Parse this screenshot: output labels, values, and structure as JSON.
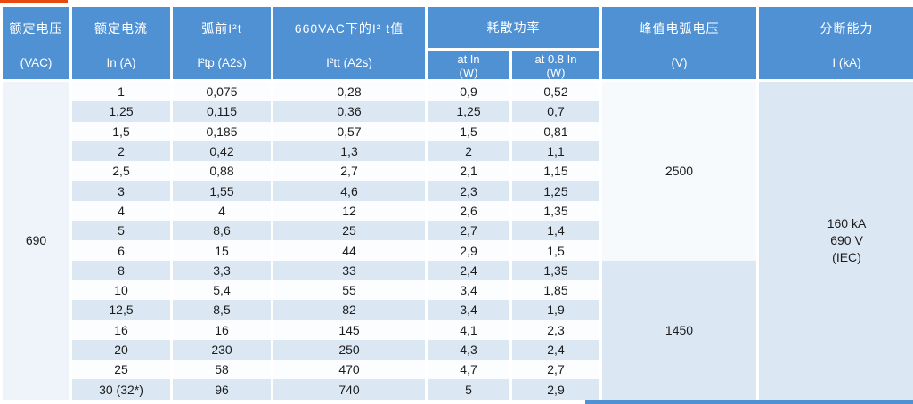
{
  "header": {
    "voltage": {
      "line1": "额定电压",
      "line2": "(VAC)"
    },
    "current": {
      "line1": "额定电流",
      "line2": "In (A)"
    },
    "prearc": {
      "line1": "弧前I²t",
      "line2": "I²tp (A2s)"
    },
    "i2t_660": {
      "line1": "660VAC下的I² t值",
      "line2": "I²tt (A2s)"
    },
    "power": {
      "label": "耗散功率",
      "sub_at_in": {
        "line1": "at In",
        "line2": "(W)"
      },
      "sub_at_08in": {
        "line1": "at 0.8 In",
        "line2": "(W)"
      }
    },
    "peak_arc": {
      "line1": "峰值电弧电压",
      "line2": "(V)"
    },
    "breaking": {
      "line1": "分断能力",
      "line2": "I (kA)"
    }
  },
  "rated_voltage": "690",
  "breaking_capacity": {
    "line1": "160 kA",
    "line2": "690 V",
    "line3": "(IEC)"
  },
  "groups": [
    {
      "peak_arc_voltage": "2500",
      "rows": [
        {
          "in": "1",
          "i2tp": "0,075",
          "i2tt": "0,28",
          "p_in": "0,9",
          "p_08in": "0,52"
        },
        {
          "in": "1,25",
          "i2tp": "0,115",
          "i2tt": "0,36",
          "p_in": "1,25",
          "p_08in": "0,7"
        },
        {
          "in": "1,5",
          "i2tp": "0,185",
          "i2tt": "0,57",
          "p_in": "1,5",
          "p_08in": "0,81"
        },
        {
          "in": "2",
          "i2tp": "0,42",
          "i2tt": "1,3",
          "p_in": "2",
          "p_08in": "1,1"
        },
        {
          "in": "2,5",
          "i2tp": "0,88",
          "i2tt": "2,7",
          "p_in": "2,1",
          "p_08in": "1,15"
        },
        {
          "in": "3",
          "i2tp": "1,55",
          "i2tt": "4,6",
          "p_in": "2,3",
          "p_08in": "1,25"
        },
        {
          "in": "4",
          "i2tp": "4",
          "i2tt": "12",
          "p_in": "2,6",
          "p_08in": "1,35"
        },
        {
          "in": "5",
          "i2tp": "8,6",
          "i2tt": "25",
          "p_in": "2,7",
          "p_08in": "1,4"
        },
        {
          "in": "6",
          "i2tp": "15",
          "i2tt": "44",
          "p_in": "2,9",
          "p_08in": "1,5"
        }
      ]
    },
    {
      "peak_arc_voltage": "1450",
      "rows": [
        {
          "in": "8",
          "i2tp": "3,3",
          "i2tt": "33",
          "p_in": "2,4",
          "p_08in": "1,35"
        },
        {
          "in": "10",
          "i2tp": "5,4",
          "i2tt": "55",
          "p_in": "3,4",
          "p_08in": "1,85"
        },
        {
          "in": "12,5",
          "i2tp": "8,5",
          "i2tt": "82",
          "p_in": "3,4",
          "p_08in": "1,9"
        },
        {
          "in": "16",
          "i2tp": "16",
          "i2tt": "145",
          "p_in": "4,1",
          "p_08in": "2,3"
        },
        {
          "in": "20",
          "i2tp": "230",
          "i2tt": "250",
          "p_in": "4,3",
          "p_08in": "2,4"
        },
        {
          "in": "25",
          "i2tp": "58",
          "i2tt": "470",
          "p_in": "4,7",
          "p_08in": "2,7"
        },
        {
          "in": "30 (32*)",
          "i2tp": "96",
          "i2tt": "740",
          "p_in": "5",
          "p_08in": "2,9"
        }
      ]
    }
  ],
  "colors": {
    "header_blue": "#4f91d3",
    "row_light": "#fbfdfe",
    "row_shaded": "#dbe8f4",
    "accent_orange": "#e8490f"
  }
}
